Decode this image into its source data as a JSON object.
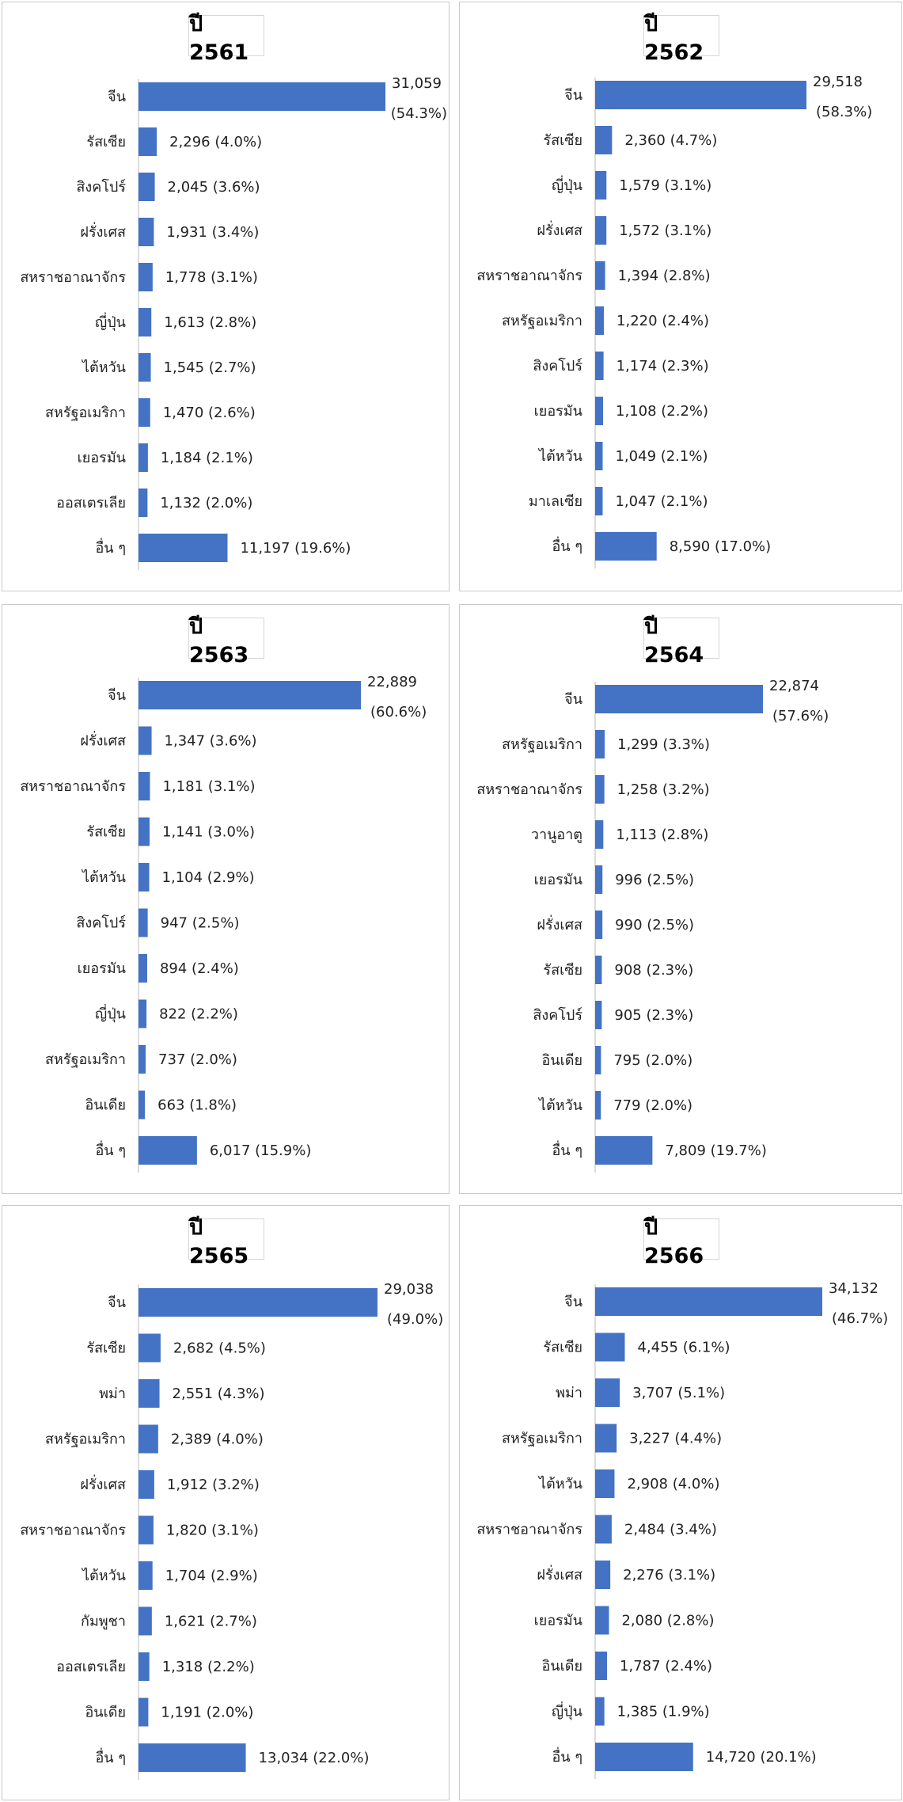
{
  "chart_data": [
    {
      "type": "bar",
      "title": "ปี 2561",
      "categories": [
        "จีน",
        "รัสเซีย",
        "สิงคโปร์",
        "ฝรั่งเศส",
        "สหราชอาณาจักร",
        "ญี่ปุ่น",
        "ไต้หวัน",
        "สหรัฐอเมริกา",
        "เยอรมัน",
        "ออสเตรเลีย",
        "อื่น ๆ"
      ],
      "values": [
        31059,
        2296,
        2045,
        1931,
        1778,
        1613,
        1545,
        1470,
        1184,
        1132,
        11197
      ],
      "value_labels": [
        "31,059",
        "2,296 (4.0%)",
        "2,045 (3.6%)",
        "1,931 (3.4%)",
        "1,778 (3.1%)",
        "1,613 (2.8%)",
        "1,545 (2.7%)",
        "1,470 (2.6%)",
        "1,184 (2.1%)",
        "1,132 (2.0%)",
        "11,197 (19.6%)"
      ],
      "first_pct_label": "(54.3%)",
      "xlim": [
        0,
        31059
      ],
      "color": "#4472c4",
      "grid": false
    },
    {
      "type": "bar",
      "title": "ปี 2562",
      "categories": [
        "จีน",
        "รัสเซีย",
        "ญี่ปุ่น",
        "ฝรั่งเศส",
        "สหราชอาณาจักร",
        "สหรัฐอเมริกา",
        "สิงคโปร์",
        "เยอรมัน",
        "ไต้หวัน",
        "มาเลเซีย",
        "อื่น ๆ"
      ],
      "values": [
        29518,
        2360,
        1579,
        1572,
        1394,
        1220,
        1174,
        1108,
        1049,
        1047,
        8590
      ],
      "value_labels": [
        "29,518",
        "2,360 (4.7%)",
        "1,579 (3.1%)",
        "1,572 (3.1%)",
        "1,394 (2.8%)",
        "1,220 (2.4%)",
        "1,174 (2.3%)",
        "1,108 (2.2%)",
        "1,049 (2.1%)",
        "1,047 (2.1%)",
        "8,590 (17.0%)"
      ],
      "first_pct_label": "(58.3%)",
      "xlim": [
        0,
        29518
      ],
      "color": "#4472c4",
      "grid": false
    },
    {
      "type": "bar",
      "title": "ปี 2563",
      "categories": [
        "จีน",
        "ฝรั่งเศส",
        "สหราชอาณาจักร",
        "รัสเซีย",
        "ไต้หวัน",
        "สิงคโปร์",
        "เยอรมัน",
        "ญี่ปุ่น",
        "สหรัฐอเมริกา",
        "อินเดีย",
        "อื่น ๆ"
      ],
      "values": [
        22889,
        1347,
        1181,
        1141,
        1104,
        947,
        894,
        822,
        737,
        663,
        6017
      ],
      "value_labels": [
        "22,889",
        "1,347 (3.6%)",
        "1,181 (3.1%)",
        "1,141 (3.0%)",
        "1,104 (2.9%)",
        "947 (2.5%)",
        "894 (2.4%)",
        "822 (2.2%)",
        "737 (2.0%)",
        "663 (1.8%)",
        "6,017 (15.9%)"
      ],
      "first_pct_label": "(60.6%)",
      "xlim": [
        0,
        22889
      ],
      "color": "#4472c4",
      "grid": false
    },
    {
      "type": "bar",
      "title": "ปี 2564",
      "categories": [
        "จีน",
        "สหรัฐอเมริกา",
        "สหราชอาณาจักร",
        "วานูอาตู",
        "เยอรมัน",
        "ฝรั่งเศส",
        "รัสเซีย",
        "สิงคโปร์",
        "อินเดีย",
        "ไต้หวัน",
        "อื่น ๆ"
      ],
      "values": [
        22874,
        1299,
        1258,
        1113,
        996,
        990,
        908,
        905,
        795,
        779,
        7809
      ],
      "value_labels": [
        "22,874",
        "1,299 (3.3%)",
        "1,258 (3.2%)",
        "1,113 (2.8%)",
        "996 (2.5%)",
        "990 (2.5%)",
        "908 (2.3%)",
        "905 (2.3%)",
        "795 (2.0%)",
        "779 (2.0%)",
        "7,809 (19.7%)"
      ],
      "first_pct_label": "(57.6%)",
      "xlim": [
        0,
        22874
      ],
      "color": "#4472c4",
      "grid": false
    },
    {
      "type": "bar",
      "title": "ปี 2565",
      "categories": [
        "จีน",
        "รัสเซีย",
        "พม่า",
        "สหรัฐอเมริกา",
        "ฝรั่งเศส",
        "สหราชอาณาจักร",
        "ไต้หวัน",
        "กัมพูชา",
        "ออสเตรเลีย",
        "อินเดีย",
        "อื่น ๆ"
      ],
      "values": [
        29038,
        2682,
        2551,
        2389,
        1912,
        1820,
        1704,
        1621,
        1318,
        1191,
        13034
      ],
      "value_labels": [
        "29,038",
        "2,682 (4.5%)",
        "2,551 (4.3%)",
        "2,389 (4.0%)",
        "1,912 (3.2%)",
        "1,820 (3.1%)",
        "1,704 (2.9%)",
        "1,621 (2.7%)",
        "1,318 (2.2%)",
        "1,191 (2.0%)",
        "13,034 (22.0%)"
      ],
      "first_pct_label": "(49.0%)",
      "xlim": [
        0,
        29038
      ],
      "color": "#4472c4",
      "grid": false
    },
    {
      "type": "bar",
      "title": "ปี 2566",
      "categories": [
        "จีน",
        "รัสเซีย",
        "พม่า",
        "สหรัฐอเมริกา",
        "ไต้หวัน",
        "สหราชอาณาจักร",
        "ฝรั่งเศส",
        "เยอรมัน",
        "อินเดีย",
        "ญี่ปุ่น",
        "อื่น ๆ"
      ],
      "values": [
        34132,
        4455,
        3707,
        3227,
        2908,
        2484,
        2276,
        2080,
        1787,
        1385,
        14720
      ],
      "value_labels": [
        "34,132",
        "4,455 (6.1%)",
        "3,707 (5.1%)",
        "3,227 (4.4%)",
        "2,908 (4.0%)",
        "2,484 (3.4%)",
        "2,276 (3.1%)",
        "2,080 (2.8%)",
        "1,787 (2.4%)",
        "1,385 (1.9%)",
        "14,720 (20.1%)"
      ],
      "first_pct_label": "(46.7%)",
      "xlim": [
        0,
        34132
      ],
      "color": "#4472c4",
      "grid": false
    }
  ]
}
